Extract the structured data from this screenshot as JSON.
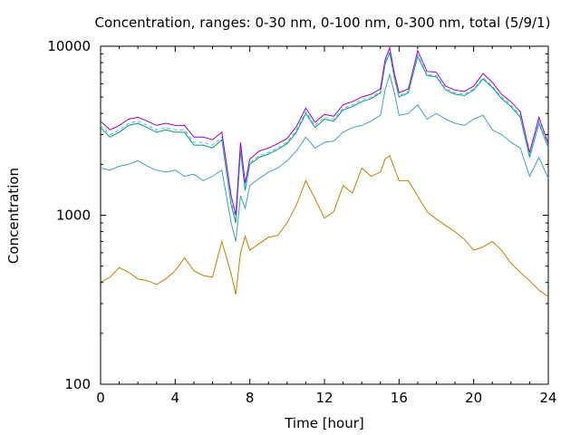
{
  "chart_data": {
    "type": "line",
    "title": "Concentration, ranges: 0-30 nm, 0-100 nm, 0-300 nm, total (5/9/1)",
    "xlabel": "Time [hour]",
    "ylabel": "Concentration",
    "xlim": [
      0,
      24
    ],
    "ylim": [
      100,
      10000
    ],
    "yscale": "log",
    "grid": false,
    "legend": "none",
    "x_ticks": [
      "0",
      "4",
      "8",
      "12",
      "16",
      "20",
      "24"
    ],
    "x_tick_values": [
      0,
      4,
      8,
      12,
      16,
      20,
      24
    ],
    "y_ticks": [
      "100",
      "1000",
      "10000"
    ],
    "y_tick_values": [
      100,
      1000,
      10000
    ],
    "x": [
      0,
      0.5,
      1,
      1.5,
      2,
      2.5,
      3,
      3.5,
      4,
      4.5,
      5,
      5.5,
      6,
      6.5,
      7,
      7.25,
      7.5,
      7.75,
      8,
      8.5,
      9,
      9.5,
      10,
      10.5,
      11,
      11.5,
      12,
      12.5,
      13,
      13.5,
      14,
      14.5,
      15,
      15.25,
      15.5,
      15.75,
      16,
      16.5,
      17,
      17.5,
      18,
      18.5,
      19,
      19.5,
      20,
      20.5,
      21,
      21.5,
      22,
      22.5,
      23,
      23.5,
      24
    ],
    "series": [
      {
        "color": "#c08000",
        "values": [
          400,
          430,
          490,
          460,
          420,
          410,
          390,
          420,
          470,
          560,
          470,
          440,
          430,
          700,
          450,
          340,
          600,
          750,
          620,
          680,
          740,
          760,
          900,
          1150,
          1600,
          1250,
          960,
          1050,
          1500,
          1350,
          1900,
          1700,
          1800,
          2150,
          2250,
          1900,
          1600,
          1600,
          1300,
          1050,
          950,
          870,
          800,
          720,
          620,
          650,
          700,
          620,
          520,
          460,
          410,
          360,
          330
        ]
      },
      {
        "color": "#40a0c0",
        "values": [
          1900,
          1850,
          1950,
          2000,
          2100,
          1950,
          1850,
          1800,
          1850,
          1700,
          1750,
          1600,
          1700,
          1850,
          900,
          700,
          1300,
          1100,
          1500,
          1650,
          1800,
          1900,
          2100,
          2400,
          2900,
          2500,
          2700,
          2750,
          3100,
          3300,
          3400,
          3600,
          3900,
          5500,
          6800,
          5300,
          3900,
          4000,
          4500,
          3700,
          4000,
          3700,
          3500,
          3400,
          3700,
          3900,
          3200,
          3000,
          2700,
          2500,
          1700,
          2200,
          1650
        ]
      },
      {
        "color": "#009e73",
        "values": [
          3300,
          2900,
          3100,
          3400,
          3500,
          3300,
          3100,
          3200,
          3100,
          3100,
          2600,
          2600,
          2500,
          2800,
          1150,
          900,
          2400,
          1400,
          2000,
          2200,
          2300,
          2450,
          2650,
          3100,
          4000,
          3300,
          3700,
          3600,
          4200,
          4400,
          4700,
          4900,
          5300,
          7800,
          9100,
          6500,
          5000,
          5300,
          8700,
          6700,
          6600,
          5500,
          5200,
          5100,
          5500,
          6400,
          5700,
          4900,
          4400,
          3800,
          2200,
          3500,
          2500
        ]
      },
      {
        "color": "#56b4e9",
        "dash": "4,3",
        "values": [
          3400,
          3000,
          3200,
          3500,
          3600,
          3400,
          3200,
          3300,
          3200,
          3200,
          2700,
          2700,
          2600,
          2900,
          1200,
          950,
          2500,
          1450,
          2050,
          2250,
          2350,
          2500,
          2700,
          3200,
          4100,
          3400,
          3800,
          3700,
          4300,
          4500,
          4800,
          5000,
          5400,
          8000,
          9300,
          6600,
          5100,
          5400,
          8900,
          6800,
          6700,
          5600,
          5300,
          5200,
          5600,
          6500,
          5800,
          5000,
          4500,
          3900,
          2250,
          3600,
          2550
        ]
      },
      {
        "color": "#9400d3",
        "values": [
          3600,
          3200,
          3400,
          3700,
          3800,
          3600,
          3400,
          3500,
          3400,
          3400,
          2900,
          2900,
          2800,
          3100,
          1300,
          1000,
          2700,
          1550,
          2150,
          2400,
          2500,
          2650,
          2850,
          3350,
          4300,
          3550,
          3950,
          3850,
          4500,
          4700,
          5000,
          5200,
          5600,
          8300,
          9800,
          6900,
          5300,
          5600,
          9400,
          7100,
          7000,
          5800,
          5500,
          5400,
          5800,
          6900,
          6100,
          5200,
          4700,
          4100,
          2350,
          3800,
          2650
        ]
      }
    ]
  }
}
